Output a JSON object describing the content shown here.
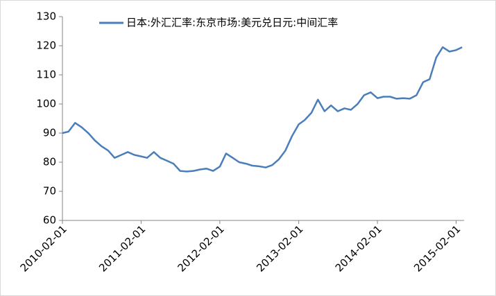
{
  "chart_data": {
    "type": "line",
    "x": [
      "2010-02-01",
      "2010-03-01",
      "2010-04-01",
      "2010-05-01",
      "2010-06-01",
      "2010-07-01",
      "2010-08-01",
      "2010-09-01",
      "2010-10-01",
      "2010-11-01",
      "2010-12-01",
      "2011-01-01",
      "2011-02-01",
      "2011-03-01",
      "2011-04-01",
      "2011-05-01",
      "2011-06-01",
      "2011-07-01",
      "2011-08-01",
      "2011-09-01",
      "2011-10-01",
      "2011-11-01",
      "2011-12-01",
      "2012-01-01",
      "2012-02-01",
      "2012-03-01",
      "2012-04-01",
      "2012-05-01",
      "2012-06-01",
      "2012-07-01",
      "2012-08-01",
      "2012-09-01",
      "2012-10-01",
      "2012-11-01",
      "2012-12-01",
      "2013-01-01",
      "2013-02-01",
      "2013-03-01",
      "2013-04-01",
      "2013-05-01",
      "2013-06-01",
      "2013-07-01",
      "2013-08-01",
      "2013-09-01",
      "2013-10-01",
      "2013-11-01",
      "2013-12-01",
      "2014-01-01",
      "2014-02-01",
      "2014-03-01",
      "2014-04-01",
      "2014-05-01",
      "2014-06-01",
      "2014-07-01",
      "2014-08-01",
      "2014-09-01",
      "2014-10-01",
      "2014-11-01",
      "2014-12-01",
      "2015-01-01",
      "2015-02-01",
      "2015-03-01"
    ],
    "series": [
      {
        "name": "日本:外汇汇率:东京市场:美元兑日元:中间汇率",
        "color": "#4a7ebb",
        "values": [
          90,
          90.5,
          93.5,
          92,
          90,
          87.5,
          85.5,
          84,
          81.5,
          82.5,
          83.5,
          82.5,
          82,
          81.5,
          83.5,
          81.5,
          80.5,
          79.5,
          77,
          76.8,
          77,
          77.5,
          77.8,
          77,
          78.5,
          83,
          81.5,
          80,
          79.5,
          78.8,
          78.6,
          78.2,
          79,
          81,
          84,
          89,
          93,
          94.5,
          97,
          101.5,
          97.5,
          99.5,
          97.5,
          98.5,
          98,
          100,
          103,
          104,
          102,
          102.5,
          102.5,
          101.8,
          102,
          101.8,
          103,
          107.5,
          108.5,
          116,
          119.5,
          118,
          118.5,
          119.5
        ]
      }
    ],
    "xlim": [
      "2010-02-01",
      "2015-03-10"
    ],
    "xticks": [
      "2010-02-01",
      "2011-02-01",
      "2012-02-01",
      "2013-02-01",
      "2014-02-01",
      "2015-02-01"
    ],
    "ylim": [
      60,
      130
    ],
    "yticks": [
      60,
      70,
      80,
      90,
      100,
      110,
      120,
      130
    ],
    "grid": false,
    "legend": "top"
  }
}
